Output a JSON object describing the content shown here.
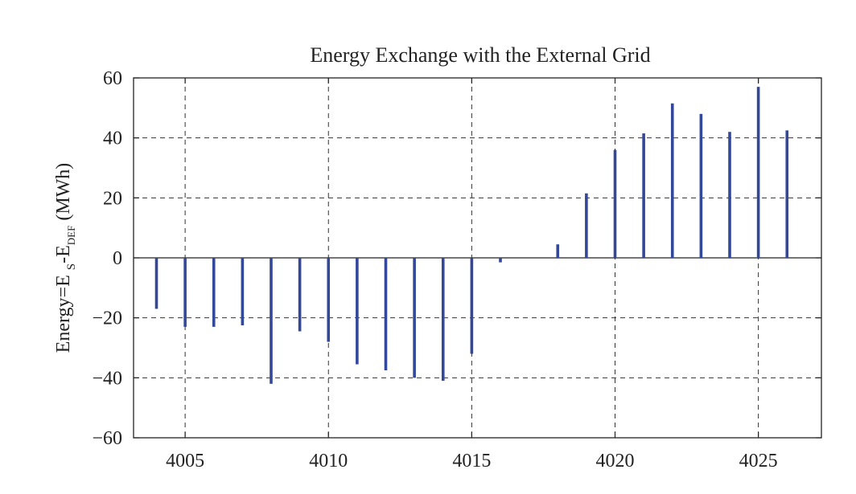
{
  "chart_data": {
    "type": "bar",
    "title": "Energy Exchange with the External Grid",
    "ylabel": {
      "prefix": "Energy=E",
      "sub1": "S",
      "mid": "-E",
      "sub2": "DEF",
      "suffix": " (MWh)"
    },
    "xlabel": "",
    "xlim": [
      4003.2,
      4027.2
    ],
    "ylim": [
      -60,
      60
    ],
    "xticks": [
      4005,
      4010,
      4015,
      4020,
      4025
    ],
    "yticks": [
      -60,
      -40,
      -20,
      0,
      20,
      40,
      60
    ],
    "ytick_labels": [
      "−60",
      "−40",
      "−20",
      "0",
      "20",
      "40",
      "60"
    ],
    "grid": true,
    "bar_color": "#34489a",
    "x": [
      4004,
      4005,
      4006,
      4007,
      4008,
      4009,
      4010,
      4011,
      4012,
      4013,
      4014,
      4015,
      4016,
      4017,
      4018,
      4019,
      4020,
      4021,
      4022,
      4023,
      4024,
      4025,
      4026
    ],
    "values": [
      -17,
      -23,
      -23,
      -22.5,
      -42,
      -24.5,
      -28,
      -35.5,
      -37.5,
      -40,
      -41,
      -32,
      -1.5,
      0,
      4.5,
      21.5,
      36,
      41.5,
      51.5,
      48,
      42,
      57,
      42.5
    ]
  }
}
